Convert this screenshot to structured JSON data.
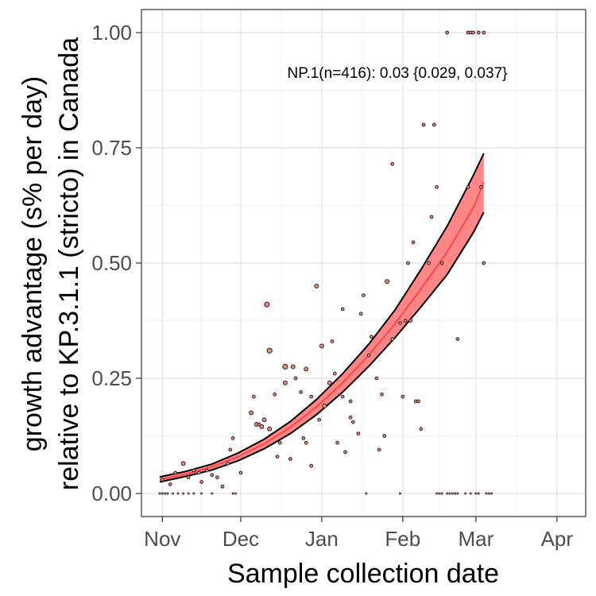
{
  "chart_data": {
    "type": "scatter",
    "title": "",
    "xlabel": "Sample collection date",
    "ylabel": [
      "growth advantage (s% per day)",
      "relative to KP.3.1.1 (stricto) in Canada"
    ],
    "annotation": "NP.1(n=416): 0.03 {0.029, 0.037}",
    "x_range": [
      "2024-10-24",
      "2025-04-12"
    ],
    "ylim": [
      -0.05,
      1.05
    ],
    "x_ticks": [
      {
        "date": "2024-11-01",
        "label": "Nov"
      },
      {
        "date": "2024-12-01",
        "label": "Dec"
      },
      {
        "date": "2025-01-01",
        "label": "Jan"
      },
      {
        "date": "2025-02-01",
        "label": "Feb"
      },
      {
        "date": "2025-03-01",
        "label": "Mar"
      },
      {
        "date": "2025-04-01",
        "label": "Apr"
      }
    ],
    "y_ticks": [
      {
        "value": 0,
        "label": "0.00"
      },
      {
        "value": 0.25,
        "label": "0.25"
      },
      {
        "value": 0.5,
        "label": "0.50"
      },
      {
        "value": 0.75,
        "label": "0.75"
      },
      {
        "value": 1,
        "label": "1.00"
      }
    ],
    "grid": true,
    "colors": {
      "fit_line": "#f8474b",
      "ribbon": "#ff7f7f",
      "points": "#e8867e",
      "point_stroke": "#2a2a2a"
    },
    "fit": {
      "x": [
        "2024-10-31",
        "2024-11-10",
        "2024-11-20",
        "2024-11-30",
        "2024-12-10",
        "2024-12-20",
        "2024-12-30",
        "2025-01-09",
        "2025-01-19",
        "2025-01-29",
        "2025-02-08",
        "2025-02-18",
        "2025-02-28",
        "2025-03-04"
      ],
      "y": [
        0.03,
        0.042,
        0.058,
        0.08,
        0.108,
        0.144,
        0.188,
        0.24,
        0.3,
        0.368,
        0.444,
        0.524,
        0.62,
        0.675
      ],
      "lower": [
        0.025,
        0.037,
        0.051,
        0.071,
        0.097,
        0.13,
        0.171,
        0.22,
        0.276,
        0.338,
        0.405,
        0.475,
        0.566,
        0.61
      ],
      "upper": [
        0.036,
        0.048,
        0.064,
        0.088,
        0.118,
        0.156,
        0.204,
        0.26,
        0.324,
        0.398,
        0.486,
        0.58,
        0.69,
        0.738
      ]
    },
    "points": [
      {
        "x": "2024-10-31",
        "y": 0.0,
        "n": 1
      },
      {
        "x": "2024-11-01",
        "y": 0.0,
        "n": 1
      },
      {
        "x": "2024-11-02",
        "y": 0.0,
        "n": 1
      },
      {
        "x": "2024-11-03",
        "y": 0.0,
        "n": 1
      },
      {
        "x": "2024-11-05",
        "y": 0.0,
        "n": 1
      },
      {
        "x": "2024-11-07",
        "y": 0.0,
        "n": 1
      },
      {
        "x": "2024-11-09",
        "y": 0.0,
        "n": 1
      },
      {
        "x": "2024-11-11",
        "y": 0.0,
        "n": 1
      },
      {
        "x": "2024-11-13",
        "y": 0.0,
        "n": 1
      },
      {
        "x": "2024-11-16",
        "y": 0.0,
        "n": 1
      },
      {
        "x": "2024-11-20",
        "y": 0.0,
        "n": 1
      },
      {
        "x": "2024-11-28",
        "y": 0.0,
        "n": 1
      },
      {
        "x": "2024-11-29",
        "y": 0.0,
        "n": 1
      },
      {
        "x": "2024-11-01",
        "y": 0.03,
        "n": 2
      },
      {
        "x": "2024-11-04",
        "y": 0.02,
        "n": 2
      },
      {
        "x": "2024-11-06",
        "y": 0.045,
        "n": 2
      },
      {
        "x": "2024-11-09",
        "y": 0.065,
        "n": 3
      },
      {
        "x": "2024-11-11",
        "y": 0.035,
        "n": 2
      },
      {
        "x": "2024-11-13",
        "y": 0.05,
        "n": 2
      },
      {
        "x": "2024-11-15",
        "y": 0.045,
        "n": 2
      },
      {
        "x": "2024-11-16",
        "y": 0.025,
        "n": 2
      },
      {
        "x": "2024-11-18",
        "y": 0.05,
        "n": 2
      },
      {
        "x": "2024-11-20",
        "y": 0.04,
        "n": 2
      },
      {
        "x": "2024-11-22",
        "y": 0.035,
        "n": 2
      },
      {
        "x": "2024-11-24",
        "y": 0.015,
        "n": 2
      },
      {
        "x": "2024-11-26",
        "y": 0.065,
        "n": 2
      },
      {
        "x": "2024-11-27",
        "y": 0.095,
        "n": 2
      },
      {
        "x": "2024-11-28",
        "y": 0.12,
        "n": 2
      },
      {
        "x": "2024-12-01",
        "y": 0.045,
        "n": 2
      },
      {
        "x": "2024-12-05",
        "y": 0.175,
        "n": 3
      },
      {
        "x": "2024-12-06",
        "y": 0.21,
        "n": 2
      },
      {
        "x": "2024-12-07",
        "y": 0.15,
        "n": 3
      },
      {
        "x": "2024-12-08",
        "y": 0.15,
        "n": 2
      },
      {
        "x": "2024-12-09",
        "y": 0.145,
        "n": 3
      },
      {
        "x": "2024-12-10",
        "y": 0.16,
        "n": 3
      },
      {
        "x": "2024-12-11",
        "y": 0.41,
        "n": 4
      },
      {
        "x": "2024-12-12",
        "y": 0.31,
        "n": 4
      },
      {
        "x": "2024-12-12",
        "y": 0.14,
        "n": 3
      },
      {
        "x": "2024-12-14",
        "y": 0.215,
        "n": 2
      },
      {
        "x": "2024-12-15",
        "y": 0.08,
        "n": 2
      },
      {
        "x": "2024-12-16",
        "y": 0.11,
        "n": 2
      },
      {
        "x": "2024-12-18",
        "y": 0.275,
        "n": 4
      },
      {
        "x": "2024-12-18",
        "y": 0.24,
        "n": 3
      },
      {
        "x": "2024-12-20",
        "y": 0.075,
        "n": 2
      },
      {
        "x": "2024-12-21",
        "y": 0.275,
        "n": 3
      },
      {
        "x": "2024-12-22",
        "y": 0.25,
        "n": 2
      },
      {
        "x": "2024-12-24",
        "y": 0.22,
        "n": 2
      },
      {
        "x": "2024-12-25",
        "y": 0.12,
        "n": 2
      },
      {
        "x": "2024-12-26",
        "y": 0.11,
        "n": 2
      },
      {
        "x": "2024-12-26",
        "y": 0.27,
        "n": 3
      },
      {
        "x": "2024-12-28",
        "y": 0.06,
        "n": 2
      },
      {
        "x": "2024-12-28",
        "y": 0.21,
        "n": 2
      },
      {
        "x": "2024-12-30",
        "y": 0.45,
        "n": 3
      },
      {
        "x": "2024-12-31",
        "y": 0.16,
        "n": 2
      },
      {
        "x": "2025-01-01",
        "y": 0.32,
        "n": 3
      },
      {
        "x": "2025-01-02",
        "y": 0.19,
        "n": 3
      },
      {
        "x": "2025-01-04",
        "y": 0.24,
        "n": 3
      },
      {
        "x": "2025-01-05",
        "y": 0.33,
        "n": 2
      },
      {
        "x": "2025-01-06",
        "y": 0.26,
        "n": 2
      },
      {
        "x": "2025-01-07",
        "y": 0.11,
        "n": 2
      },
      {
        "x": "2025-01-09",
        "y": 0.4,
        "n": 2
      },
      {
        "x": "2025-01-09",
        "y": 0.21,
        "n": 2
      },
      {
        "x": "2025-01-10",
        "y": 0.09,
        "n": 2
      },
      {
        "x": "2025-01-12",
        "y": 0.165,
        "n": 2
      },
      {
        "x": "2025-01-12",
        "y": 0.2,
        "n": 2
      },
      {
        "x": "2025-01-13",
        "y": 0.155,
        "n": 2
      },
      {
        "x": "2025-01-15",
        "y": 0.13,
        "n": 2
      },
      {
        "x": "2025-01-16",
        "y": 0.39,
        "n": 2
      },
      {
        "x": "2025-01-17",
        "y": 0.43,
        "n": 2
      },
      {
        "x": "2025-01-19",
        "y": 0.3,
        "n": 2
      },
      {
        "x": "2025-01-20",
        "y": 0.34,
        "n": 2
      },
      {
        "x": "2025-01-22",
        "y": 0.25,
        "n": 2
      },
      {
        "x": "2025-01-23",
        "y": 0.095,
        "n": 2
      },
      {
        "x": "2025-01-24",
        "y": 0.215,
        "n": 2
      },
      {
        "x": "2025-01-25",
        "y": 0.125,
        "n": 2
      },
      {
        "x": "2025-01-26",
        "y": 0.46,
        "n": 3
      },
      {
        "x": "2025-01-28",
        "y": 0.715,
        "n": 2
      },
      {
        "x": "2025-01-28",
        "y": 0.335,
        "n": 2
      },
      {
        "x": "2025-01-31",
        "y": 0.37,
        "n": 2
      },
      {
        "x": "2025-02-01",
        "y": 0.21,
        "n": 2
      },
      {
        "x": "2025-02-02",
        "y": 0.375,
        "n": 2
      },
      {
        "x": "2025-02-03",
        "y": 0.5,
        "n": 2
      },
      {
        "x": "2025-02-04",
        "y": 0.375,
        "n": 2
      },
      {
        "x": "2025-02-05",
        "y": 0.545,
        "n": 2
      },
      {
        "x": "2025-02-06",
        "y": 0.2,
        "n": 2
      },
      {
        "x": "2025-02-07",
        "y": 0.2,
        "n": 2
      },
      {
        "x": "2025-02-08",
        "y": 0.14,
        "n": 2
      },
      {
        "x": "2025-02-09",
        "y": 0.8,
        "n": 2
      },
      {
        "x": "2025-02-11",
        "y": 0.5,
        "n": 2
      },
      {
        "x": "2025-02-12",
        "y": 0.6,
        "n": 2
      },
      {
        "x": "2025-02-13",
        "y": 0.8,
        "n": 2
      },
      {
        "x": "2025-02-14",
        "y": 0.665,
        "n": 2
      },
      {
        "x": "2025-02-16",
        "y": 0.5,
        "n": 2
      },
      {
        "x": "2025-02-18",
        "y": 1.0,
        "n": 2
      },
      {
        "x": "2025-02-22",
        "y": 0.335,
        "n": 2
      },
      {
        "x": "2025-02-26",
        "y": 0.665,
        "n": 2
      },
      {
        "x": "2025-02-26",
        "y": 1.0,
        "n": 2
      },
      {
        "x": "2025-02-27",
        "y": 1.0,
        "n": 2
      },
      {
        "x": "2025-02-28",
        "y": 1.0,
        "n": 2
      },
      {
        "x": "2025-03-02",
        "y": 1.0,
        "n": 2
      },
      {
        "x": "2025-03-04",
        "y": 1.0,
        "n": 2
      },
      {
        "x": "2025-03-03",
        "y": 0.665,
        "n": 2
      },
      {
        "x": "2025-03-04",
        "y": 0.5,
        "n": 2
      },
      {
        "x": "2025-01-18",
        "y": 0.0,
        "n": 1
      },
      {
        "x": "2025-01-31",
        "y": 0.0,
        "n": 1
      },
      {
        "x": "2025-02-14",
        "y": 0.0,
        "n": 1
      },
      {
        "x": "2025-02-15",
        "y": 0.0,
        "n": 1
      },
      {
        "x": "2025-02-16",
        "y": 0.0,
        "n": 1
      },
      {
        "x": "2025-02-18",
        "y": 0.0,
        "n": 1
      },
      {
        "x": "2025-02-19",
        "y": 0.0,
        "n": 1
      },
      {
        "x": "2025-02-20",
        "y": 0.0,
        "n": 1
      },
      {
        "x": "2025-02-21",
        "y": 0.0,
        "n": 1
      },
      {
        "x": "2025-02-22",
        "y": 0.0,
        "n": 1
      },
      {
        "x": "2025-02-25",
        "y": 0.0,
        "n": 1
      },
      {
        "x": "2025-02-27",
        "y": 0.0,
        "n": 1
      },
      {
        "x": "2025-03-01",
        "y": 0.0,
        "n": 1
      },
      {
        "x": "2025-03-02",
        "y": 0.0,
        "n": 1
      },
      {
        "x": "2025-03-05",
        "y": 0.0,
        "n": 1
      },
      {
        "x": "2025-03-06",
        "y": 0.0,
        "n": 1
      },
      {
        "x": "2025-03-07",
        "y": 0.0,
        "n": 1
      }
    ]
  }
}
